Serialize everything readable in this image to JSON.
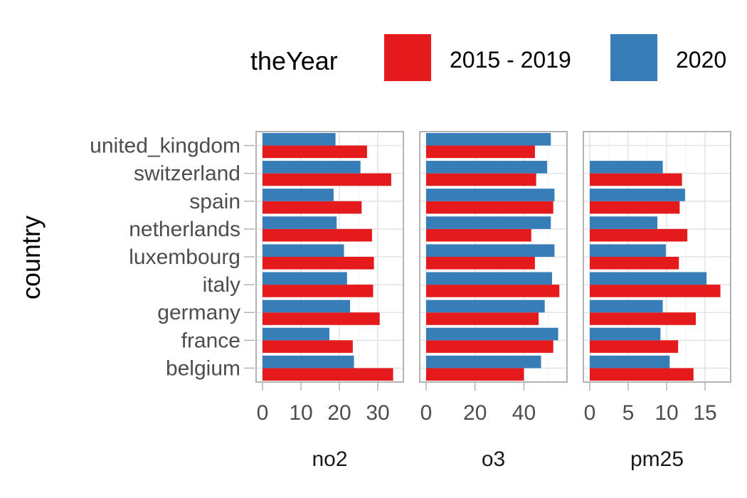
{
  "chart_data": {
    "type": "bar",
    "orientation": "horizontal",
    "ylabel": "country",
    "categories": [
      "belgium",
      "france",
      "germany",
      "italy",
      "luxembourg",
      "netherlands",
      "spain",
      "switzerland",
      "united_kingdom"
    ],
    "legend": {
      "title": "theYear",
      "position": "top",
      "entries": [
        {
          "name": "2015 - 2019",
          "color": "#E41A1C"
        },
        {
          "name": "2020",
          "color": "#377EB8"
        }
      ]
    },
    "grid": true,
    "panels": [
      {
        "strip": "no2",
        "xlim": [
          0,
          35
        ],
        "ticks": [
          0,
          10,
          20,
          30
        ],
        "series": [
          {
            "name": "2015 - 2019",
            "values": [
              34,
              23.5,
              30.5,
              28.8,
              29,
              28.5,
              25.8,
              33.5,
              27.2
            ]
          },
          {
            "name": "2020",
            "values": [
              23.8,
              17.4,
              22.8,
              22,
              21.2,
              19.3,
              18.5,
              25.5,
              19
            ]
          }
        ]
      },
      {
        "strip": "o3",
        "xlim": [
          0,
          55
        ],
        "ticks": [
          0,
          20,
          40
        ],
        "series": [
          {
            "name": "2015 - 2019",
            "values": [
              40,
              52,
              46,
              54.5,
              44.5,
              43,
              52,
              45,
              44.5
            ]
          },
          {
            "name": "2020",
            "values": [
              47,
              54,
              48.5,
              51.5,
              52.5,
              51,
              52.5,
              49.5,
              51
            ]
          }
        ]
      },
      {
        "strip": "pm25",
        "xlim": [
          0,
          17.5
        ],
        "ticks": [
          0,
          5,
          10,
          15
        ],
        "series": [
          {
            "name": "2015 - 2019",
            "values": [
              13.5,
              11.5,
              13.8,
              17,
              11.6,
              12.7,
              11.7,
              12,
              0
            ]
          },
          {
            "name": "2020",
            "values": [
              10.4,
              9.2,
              9.5,
              15.2,
              9.9,
              8.8,
              12.4,
              9.5,
              0
            ]
          }
        ]
      }
    ]
  }
}
